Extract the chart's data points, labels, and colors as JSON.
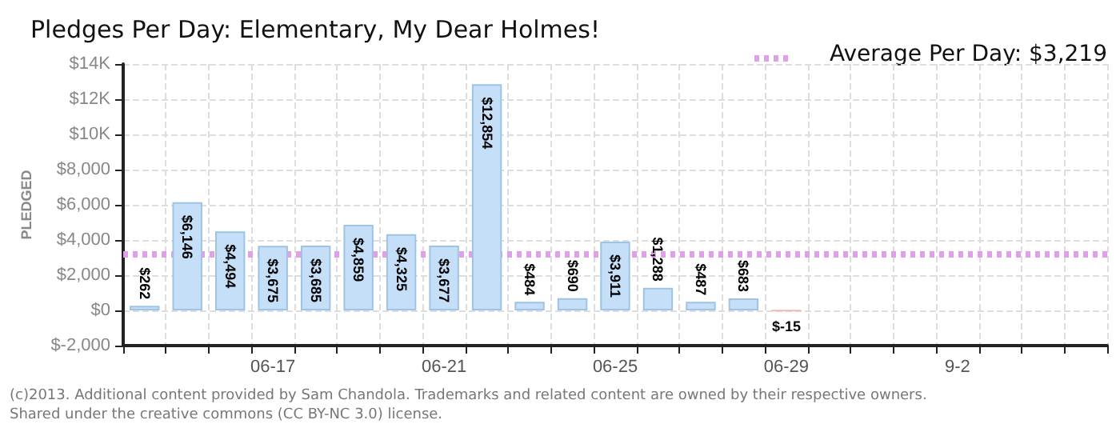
{
  "chart_data": {
    "type": "bar",
    "title": "Pledges Per Day: Elementary, My Dear Holmes!",
    "ylabel": "PLEDGED",
    "categories": [
      null,
      null,
      null,
      "06-17",
      null,
      null,
      null,
      "06-21",
      null,
      null,
      null,
      "06-25",
      null,
      null,
      null,
      "06-29",
      null,
      null,
      null,
      "9-2",
      null,
      null,
      null
    ],
    "values": [
      262,
      6146,
      4494,
      3675,
      3685,
      4859,
      4325,
      3677,
      12854,
      484,
      690,
      3911,
      1288,
      487,
      683,
      -15,
      null,
      null,
      null,
      null,
      null,
      null,
      null
    ],
    "value_labels": [
      "$262",
      "$6,146",
      "$4,494",
      "$3,675",
      "$3,685",
      "$4,859",
      "$4,325",
      "$3,677",
      "$12,854",
      "$484",
      "$690",
      "$3,911",
      "$1,288",
      "$487",
      "$683",
      "$-15",
      null,
      null,
      null,
      null,
      null,
      null,
      null
    ],
    "colors": [
      "#c5dff8",
      "#c5dff8",
      "#c5dff8",
      "#c5dff8",
      "#c5dff8",
      "#c5dff8",
      "#c5dff8",
      "#c5dff8",
      "#c5dff8",
      "#c5dff8",
      "#c5dff8",
      "#c5dff8",
      "#c5dff8",
      "#c5dff8",
      "#c5dff8",
      "#f2b8b8",
      "#c5dff8",
      "#c5dff8",
      "#c5dff8",
      "#c5dff8",
      "#c5dff8",
      "#c5dff8",
      "#c5dff8"
    ],
    "ylim": [
      -2000,
      14000
    ],
    "yticks": [
      {
        "value": -2000,
        "label": "$-2,000"
      },
      {
        "value": 0,
        "label": "$0"
      },
      {
        "value": 2000,
        "label": "$2,000"
      },
      {
        "value": 4000,
        "label": "$4,000"
      },
      {
        "value": 6000,
        "label": "$6,000"
      },
      {
        "value": 8000,
        "label": "$8,000"
      },
      {
        "value": 10000,
        "label": "$10K"
      },
      {
        "value": 12000,
        "label": "$12K"
      },
      {
        "value": 14000,
        "label": "$14K"
      }
    ],
    "grid": true,
    "ref_lines": [
      {
        "axis": "y",
        "value": 3219,
        "label": "Average Per Day: $3,219",
        "color": "#e0a0e8",
        "line_style": "dotted"
      }
    ],
    "annotations": [
      "(c)2013. Additional content provided by Sam Chandola. Trademarks and related content are owned by their respective owners.",
      "Shared under the creative commons (CC BY-NC 3.0) license."
    ]
  }
}
